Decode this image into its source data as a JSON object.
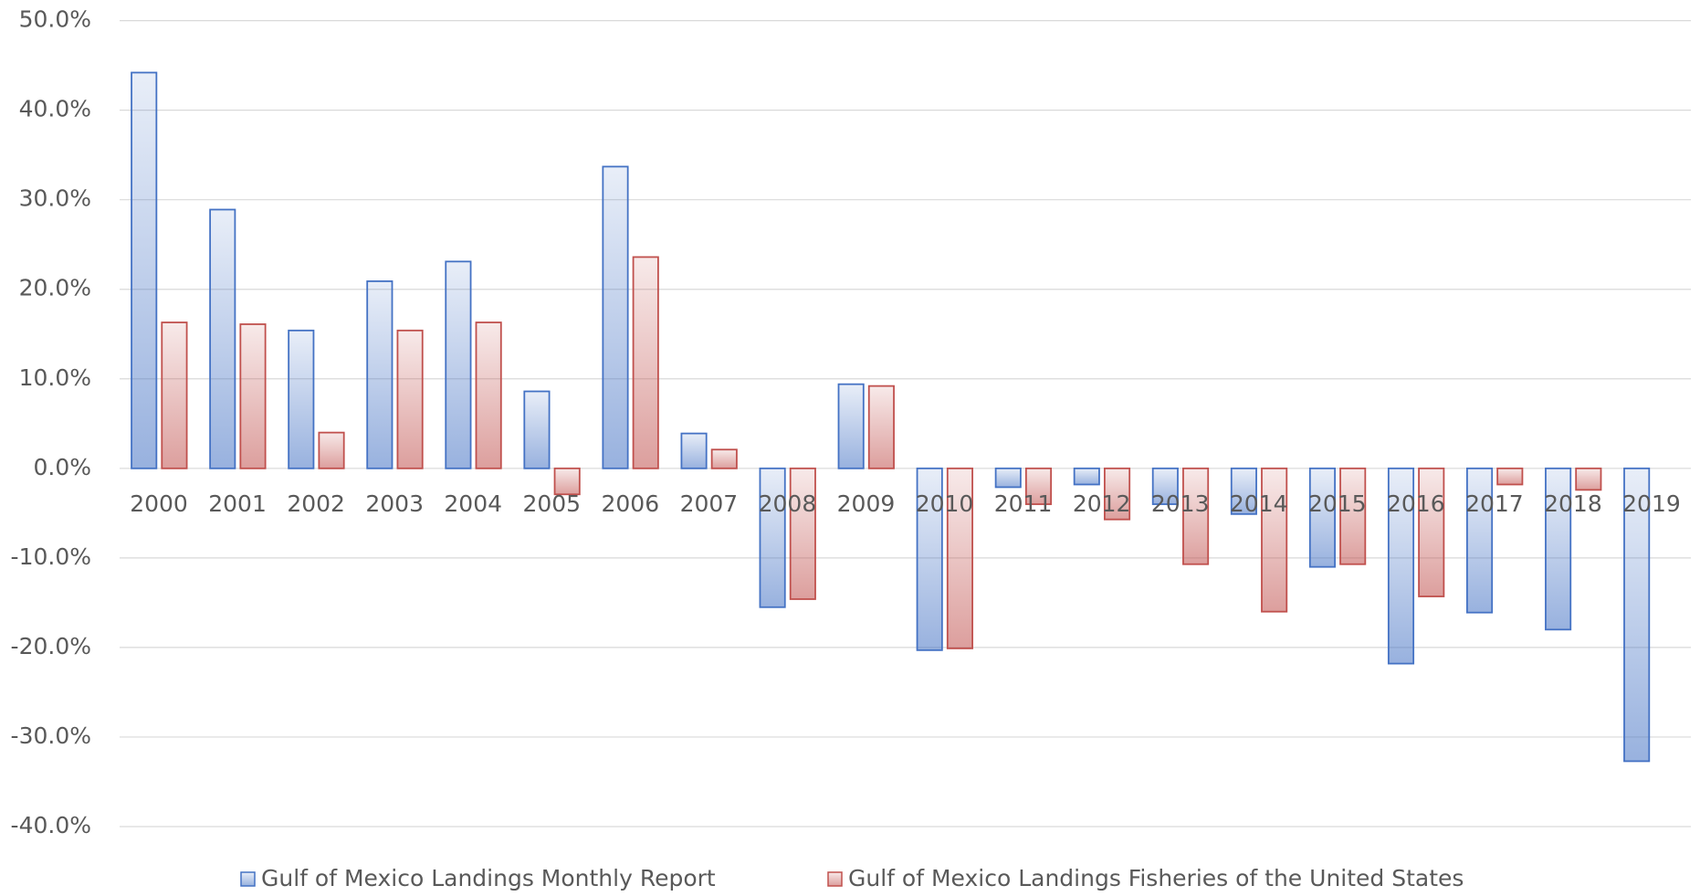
{
  "chart_data": {
    "type": "bar",
    "categories": [
      "2000",
      "2001",
      "2002",
      "2003",
      "2004",
      "2005",
      "2006",
      "2007",
      "2008",
      "2009",
      "2010",
      "2011",
      "2012",
      "2013",
      "2014",
      "2015",
      "2016",
      "2017",
      "2018",
      "2019"
    ],
    "series": [
      {
        "name": "Gulf of Mexico Landings Monthly Report",
        "color": "#4472c4",
        "values": [
          44.2,
          28.9,
          15.4,
          20.9,
          23.1,
          8.6,
          33.7,
          3.9,
          -15.5,
          9.4,
          -20.3,
          -2.1,
          -1.8,
          -4.0,
          -5.1,
          -11.0,
          -21.8,
          -16.1,
          -18.0,
          -32.7
        ]
      },
      {
        "name": "Gulf of Mexico Landings Fisheries of the United States",
        "color": "#c0504d",
        "values": [
          16.3,
          16.1,
          4.0,
          15.4,
          16.3,
          -2.9,
          23.6,
          2.1,
          -14.6,
          9.2,
          -20.1,
          -4.0,
          -5.7,
          -10.7,
          -16.0,
          -10.7,
          -14.3,
          -1.8,
          -2.4,
          null
        ]
      }
    ],
    "ylim": [
      -40,
      50
    ],
    "yticks": [
      {
        "value": -40,
        "label": "-40.0%"
      },
      {
        "value": -30,
        "label": "-30.0%"
      },
      {
        "value": -20,
        "label": "-20.0%"
      },
      {
        "value": -10,
        "label": "-10.0%"
      },
      {
        "value": 0,
        "label": "0.0%"
      },
      {
        "value": 10,
        "label": "10.0%"
      },
      {
        "value": 20,
        "label": "20.0%"
      },
      {
        "value": 30,
        "label": "30.0%"
      },
      {
        "value": 40,
        "label": "40.0%"
      },
      {
        "value": 50,
        "label": "50.0%"
      }
    ],
    "grid": true,
    "legend": "bottom"
  }
}
